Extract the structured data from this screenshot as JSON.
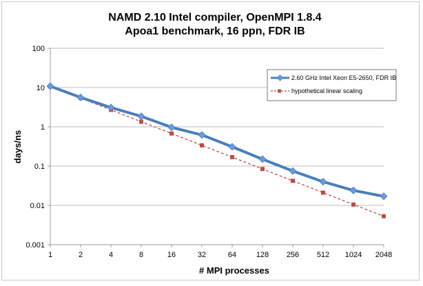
{
  "chart_data": {
    "type": "line",
    "title": [
      "NAMD 2.10 Intel compiler, OpenMPI 1.8.4",
      "Apoa1 benchmark, 16 ppn, FDR IB"
    ],
    "xlabel": "# MPI processes",
    "ylabel": "days/ns",
    "x_scale": "log2-categorical",
    "y_scale": "log10",
    "ylim": [
      0.001,
      100
    ],
    "y_ticks": [
      "100",
      "10",
      "1",
      "0.1",
      "0.01",
      "0.001"
    ],
    "y_tick_values": [
      100,
      10,
      1,
      0.1,
      0.01,
      0.001
    ],
    "categories": [
      "1",
      "2",
      "4",
      "8",
      "16",
      "32",
      "64",
      "128",
      "256",
      "512",
      "1024",
      "2048"
    ],
    "grid": "horizontal major",
    "legend_position": "right, upper",
    "series": [
      {
        "name": "2.60 GHz Intel Xeon E5-2650, FDR IB",
        "color": "#4a7ebb",
        "marker": "diamond",
        "line": "solid",
        "values": [
          10.8,
          5.6,
          3.1,
          1.85,
          0.97,
          0.62,
          0.31,
          0.15,
          0.075,
          0.04,
          0.024,
          0.017
        ]
      },
      {
        "name": "hypothetical linear scaling",
        "color": "#be4b48",
        "marker": "square",
        "line": "dashed",
        "values": [
          10.8,
          5.4,
          2.7,
          1.35,
          0.675,
          0.3375,
          0.169,
          0.0844,
          0.0422,
          0.0211,
          0.0105,
          0.0053
        ]
      }
    ]
  }
}
